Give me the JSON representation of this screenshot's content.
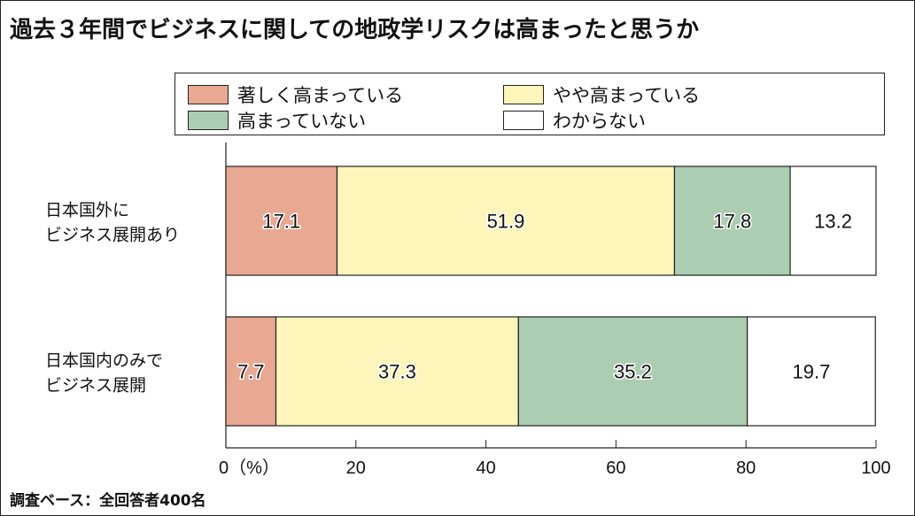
{
  "chart_data": {
    "type": "bar",
    "orientation": "horizontal-stacked",
    "title": "過去３年間でビジネスに関しての地政学リスクは高まったと思うか",
    "categories": [
      [
        "日本国外に",
        "ビジネス展開あり"
      ],
      [
        "日本国内のみで",
        "ビジネス展開"
      ]
    ],
    "series": [
      {
        "name": "著しく高まっている",
        "color": "#e8a892",
        "values": [
          17.1,
          7.7
        ]
      },
      {
        "name": "やや高まっている",
        "color": "#fdf5b9",
        "values": [
          51.9,
          37.3
        ]
      },
      {
        "name": "高まっていない",
        "color": "#abcdb1",
        "values": [
          17.8,
          35.2
        ]
      },
      {
        "name": "わからない",
        "color": "#ffffff",
        "values": [
          13.2,
          19.7
        ]
      }
    ],
    "xlim": [
      0,
      100
    ],
    "xticks": [
      "0（%）",
      "20",
      "40",
      "60",
      "80",
      "100"
    ],
    "legend_position": "top",
    "note": "調査ベース：全回答者400名"
  }
}
